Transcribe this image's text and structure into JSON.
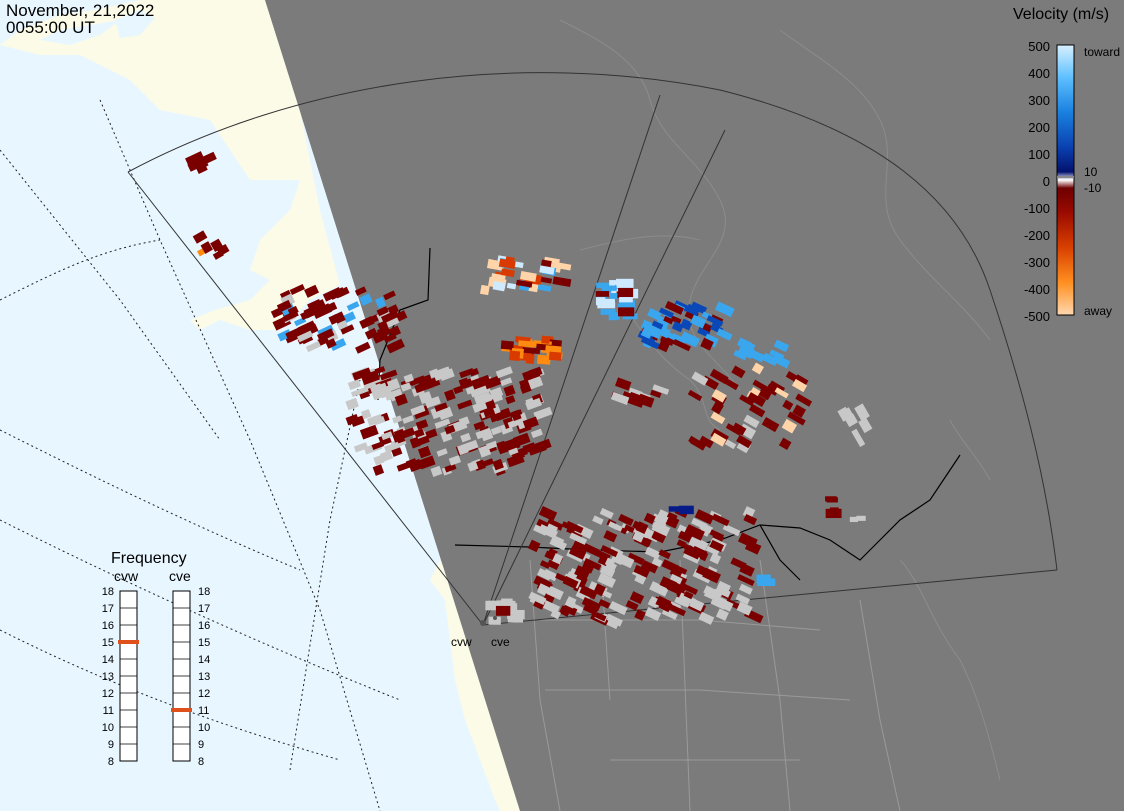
{
  "header": {
    "date": "November, 21,2022",
    "time": "0055:00 UT"
  },
  "colorbar": {
    "title": "Velocity (m/s)",
    "labels": [
      {
        "value": "500",
        "v": 500
      },
      {
        "value": "400",
        "v": 400
      },
      {
        "value": "300",
        "v": 300
      },
      {
        "value": "200",
        "v": 200
      },
      {
        "value": "100",
        "v": 100
      },
      {
        "value": "0",
        "v": 0
      },
      {
        "value": "-100",
        "v": -100
      },
      {
        "value": "-200",
        "v": -200
      },
      {
        "value": "-300",
        "v": -300
      },
      {
        "value": "-400",
        "v": -400
      },
      {
        "value": "-500",
        "v": -500
      }
    ],
    "side_labels": {
      "toward": "toward",
      "away": "away",
      "plus": "10",
      "minus": "-10"
    },
    "colors": {
      "toward_light": "#cfeaff",
      "toward_mid": "#3aa6ee",
      "toward_dark": "#0a48b8",
      "toward_deep": "#061a88",
      "away_deep": "#7a0000",
      "away_mid": "#d83a00",
      "away_orange": "#ff8a10",
      "away_light": "#ffd4a8",
      "ground_scatter": "#c8c8c8"
    }
  },
  "radars": {
    "west": "cvw",
    "east": "cve"
  },
  "frequency": {
    "title": "Frequency",
    "cvw_label": "cvw",
    "cve_label": "cve",
    "ticks": [
      "18",
      "17",
      "16",
      "15",
      "14",
      "13",
      "12",
      "11",
      "10",
      "9",
      "8"
    ],
    "cvw_value_mhz": 15,
    "cve_value_mhz": 11,
    "marker_color": "#e0501a"
  }
}
